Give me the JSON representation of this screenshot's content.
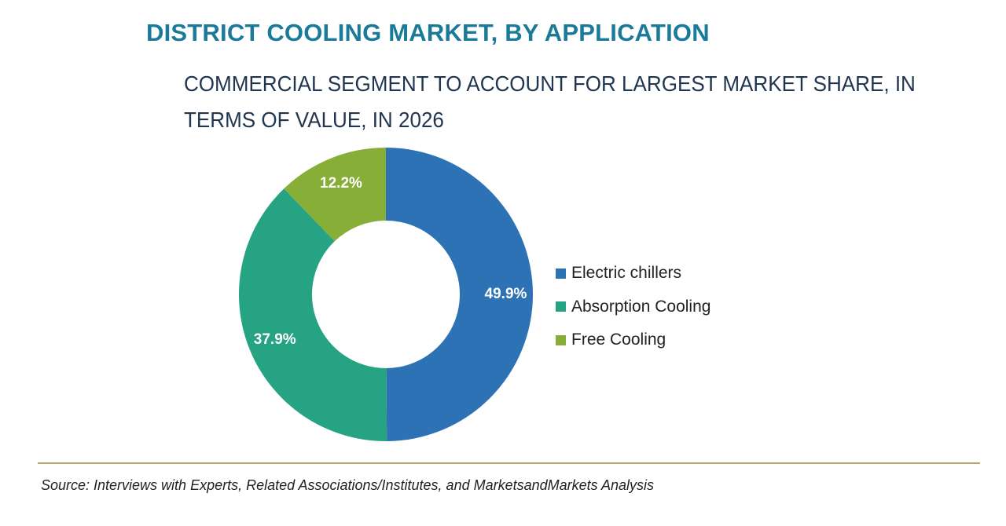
{
  "header": {
    "title": "DISTRICT COOLING MARKET, BY APPLICATION",
    "subtitle": "COMMERCIAL SEGMENT TO ACCOUNT FOR LARGEST MARKET SHARE, IN TERMS OF VALUE, IN 2026"
  },
  "chart_data": {
    "type": "pie",
    "variant": "donut",
    "categories": [
      "Electric chillers",
      "Absorption Cooling",
      "Free Cooling"
    ],
    "values": [
      49.9,
      37.9,
      12.2
    ],
    "labels": [
      "49.9%",
      "37.9%",
      "12.2%"
    ],
    "colors": [
      "#2e72b6",
      "#26a383",
      "#87ae37"
    ],
    "legend_placement": "right"
  },
  "footer": {
    "source": "Source: Interviews with Experts, Related Associations/Institutes, and MarketsandMarkets Analysis"
  }
}
